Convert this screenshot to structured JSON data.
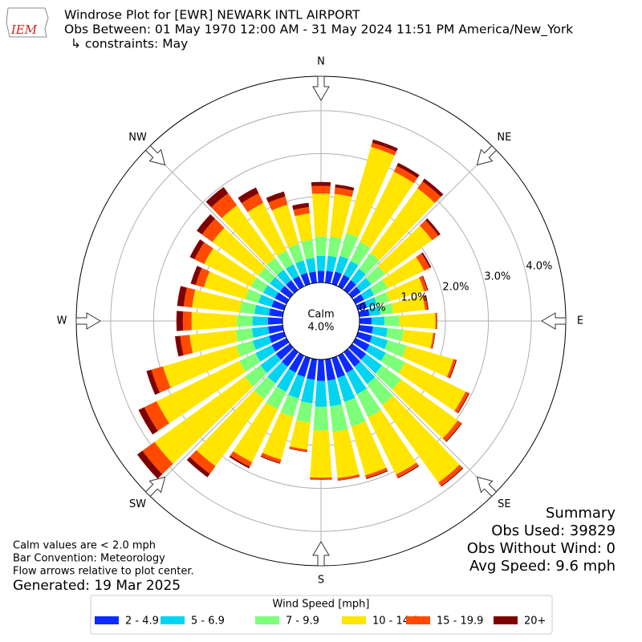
{
  "chart_data": {
    "type": "windrose",
    "logo_text": "IEM",
    "title": "Windrose Plot for [EWR] NEWARK INTL AIRPORT",
    "subtitle": "Obs Between: 01 May 1970 12:00 AM - 31 May 2024 11:51 PM America/New_York",
    "constraints": "↳ constraints: May",
    "x": [
      0,
      10,
      20,
      30,
      40,
      50,
      60,
      70,
      80,
      90,
      100,
      110,
      120,
      130,
      140,
      150,
      160,
      170,
      180,
      190,
      200,
      210,
      220,
      230,
      240,
      250,
      260,
      270,
      280,
      290,
      300,
      310,
      320,
      330,
      340,
      350
    ],
    "xticks": [
      {
        "value": 0,
        "label": "N"
      },
      {
        "value": 45,
        "label": "NE"
      },
      {
        "value": 90,
        "label": "E"
      },
      {
        "value": 135,
        "label": "SE"
      },
      {
        "value": 180,
        "label": "S"
      },
      {
        "value": 225,
        "label": "SW"
      },
      {
        "value": 270,
        "label": "W"
      },
      {
        "value": 315,
        "label": "NW"
      }
    ],
    "ylim": [
      0,
      4.8
    ],
    "yticks": [
      {
        "value": 0,
        "label": "0.0%"
      },
      {
        "value": 1,
        "label": "1.0%"
      },
      {
        "value": 2,
        "label": "2.0%"
      },
      {
        "value": 3,
        "label": "3.0%"
      },
      {
        "value": 4,
        "label": "4.0%"
      }
    ],
    "grid": true,
    "calm_label": "Calm",
    "calm_value": "4.0%",
    "legend_title": "Wind Speed [mph]",
    "series": [
      {
        "name": "2 - 4.9",
        "color": "#0d2bff",
        "values": [
          0.27,
          0.28,
          0.3,
          0.3,
          0.28,
          0.25,
          0.22,
          0.22,
          0.24,
          0.28,
          0.32,
          0.34,
          0.36,
          0.4,
          0.42,
          0.45,
          0.48,
          0.5,
          0.5,
          0.48,
          0.46,
          0.44,
          0.42,
          0.4,
          0.38,
          0.36,
          0.34,
          0.34,
          0.32,
          0.3,
          0.3,
          0.28,
          0.28,
          0.27,
          0.27,
          0.26
        ]
      },
      {
        "name": "5 - 6.9",
        "color": "#00d4f0",
        "values": [
          0.35,
          0.35,
          0.38,
          0.36,
          0.33,
          0.3,
          0.26,
          0.24,
          0.26,
          0.3,
          0.34,
          0.38,
          0.42,
          0.46,
          0.5,
          0.55,
          0.58,
          0.6,
          0.6,
          0.55,
          0.52,
          0.5,
          0.48,
          0.45,
          0.42,
          0.4,
          0.38,
          0.36,
          0.34,
          0.32,
          0.3,
          0.3,
          0.3,
          0.3,
          0.3,
          0.32
        ]
      },
      {
        "name": "7 - 9.9",
        "color": "#7dff7a",
        "values": [
          0.45,
          0.45,
          0.55,
          0.5,
          0.45,
          0.4,
          0.35,
          0.3,
          0.3,
          0.35,
          0.38,
          0.45,
          0.5,
          0.55,
          0.6,
          0.6,
          0.6,
          0.6,
          0.55,
          0.45,
          0.45,
          0.45,
          0.45,
          0.45,
          0.42,
          0.4,
          0.38,
          0.36,
          0.34,
          0.32,
          0.32,
          0.32,
          0.34,
          0.36,
          0.4,
          0.42
        ]
      },
      {
        "name": "10 - 14.9",
        "color": "#ffe500",
        "values": [
          1.0,
          1.0,
          2.09,
          1.81,
          1.86,
          1.35,
          0.94,
          0.84,
          0.74,
          0.84,
          0.69,
          1.14,
          1.57,
          1.63,
          2.23,
          1.48,
          1.18,
          1.08,
          1.1,
          0.63,
          1.03,
          1.37,
          1.93,
          2.59,
          2.14,
          1.77,
          1.08,
          1.06,
          1.12,
          1.0,
          1.21,
          1.33,
          1.51,
          1.23,
          0.95,
          0.62
        ]
      },
      {
        "name": "15 - 19.9",
        "color": "#ff4a00",
        "values": [
          0.18,
          0.15,
          0.1,
          0.15,
          0.2,
          0.18,
          0.15,
          0.08,
          0.06,
          0.03,
          0.04,
          0.06,
          0.08,
          0.1,
          0.1,
          0.08,
          0.07,
          0.05,
          0.04,
          0.05,
          0.08,
          0.12,
          0.22,
          0.35,
          0.32,
          0.28,
          0.22,
          0.2,
          0.2,
          0.2,
          0.25,
          0.3,
          0.35,
          0.25,
          0.2,
          0.15
        ]
      },
      {
        "name": "20+",
        "color": "#7f0000",
        "values": [
          0.09,
          0.07,
          0.08,
          0.08,
          0.08,
          0.06,
          0.04,
          0.02,
          0.02,
          0.01,
          0.01,
          0.02,
          0.02,
          0.02,
          0.02,
          0.02,
          0.02,
          0.01,
          0.01,
          0.01,
          0.02,
          0.04,
          0.1,
          0.15,
          0.15,
          0.12,
          0.12,
          0.15,
          0.15,
          0.12,
          0.12,
          0.15,
          0.18,
          0.15,
          0.12,
          0.1
        ]
      }
    ],
    "notes": [
      "Calm values are < 2.0 mph",
      "Bar Convention: Meteorology",
      "Flow arrows relative to plot center."
    ],
    "generated": "Generated: 19 Mar 2025",
    "summary": [
      "Summary",
      "Obs Used: 39829",
      "Obs Without Wind: 0",
      "Avg Speed: 9.6 mph"
    ]
  }
}
